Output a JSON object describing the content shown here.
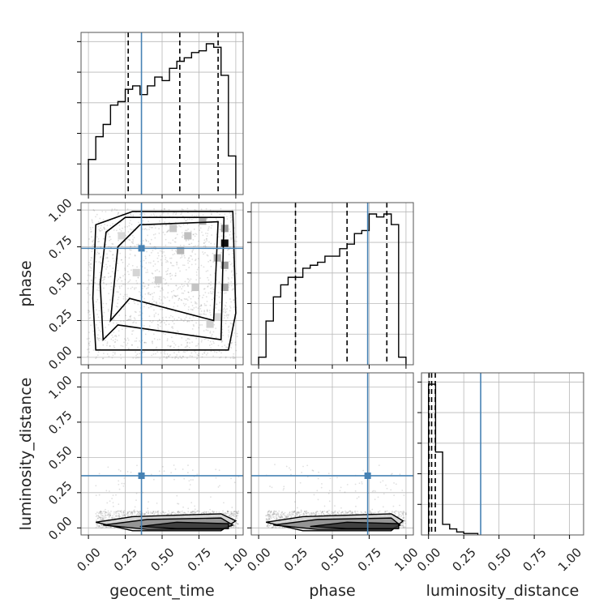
{
  "chart_data": {
    "type": "corner",
    "parameters": [
      "geocent_time",
      "phase",
      "luminosity_distance"
    ],
    "tick_labels": [
      "0.00",
      "0.25",
      "0.50",
      "0.75",
      "1.00"
    ],
    "axis_ranges": {
      "geocent_time": [
        -0.05,
        1.05
      ],
      "phase": [
        -0.05,
        1.05
      ],
      "luminosity_distance": [
        -0.05,
        1.1
      ]
    },
    "truths": {
      "geocent_time": 0.36,
      "phase": 0.74,
      "luminosity_distance": 0.37
    },
    "truth_color": "#4682b4",
    "grid": true,
    "histograms": {
      "geocent_time": {
        "bin_edges": [
          0.0,
          0.05,
          0.1,
          0.15,
          0.2,
          0.25,
          0.3,
          0.35,
          0.4,
          0.45,
          0.5,
          0.55,
          0.6,
          0.65,
          0.7,
          0.75,
          0.8,
          0.85,
          0.9,
          0.95,
          1.0
        ],
        "counts": [
          0.2,
          0.33,
          0.4,
          0.51,
          0.53,
          0.6,
          0.62,
          0.57,
          0.62,
          0.67,
          0.65,
          0.72,
          0.76,
          0.78,
          0.81,
          0.82,
          0.86,
          0.84,
          0.68,
          0.22
        ],
        "quantiles": [
          0.27,
          0.62,
          0.88
        ]
      },
      "phase": {
        "bin_edges": [
          0.0,
          0.05,
          0.1,
          0.15,
          0.2,
          0.25,
          0.3,
          0.35,
          0.4,
          0.45,
          0.5,
          0.55,
          0.6,
          0.65,
          0.7,
          0.75,
          0.8,
          0.85,
          0.9,
          0.95,
          1.0
        ],
        "counts": [
          0.05,
          0.29,
          0.45,
          0.53,
          0.58,
          0.58,
          0.64,
          0.66,
          0.68,
          0.72,
          0.72,
          0.77,
          0.8,
          0.87,
          0.89,
          1.0,
          0.98,
          1.0,
          0.93,
          0.05
        ],
        "quantiles": [
          0.25,
          0.6,
          0.87
        ]
      },
      "luminosity_distance": {
        "bin_edges": [
          0.0,
          0.05,
          0.1,
          0.15,
          0.2,
          0.25,
          0.3,
          0.35
        ],
        "counts": [
          1.0,
          0.55,
          0.07,
          0.04,
          0.02,
          0.01,
          0.01
        ],
        "quantiles": [
          0.004,
          0.022,
          0.048
        ]
      }
    }
  }
}
